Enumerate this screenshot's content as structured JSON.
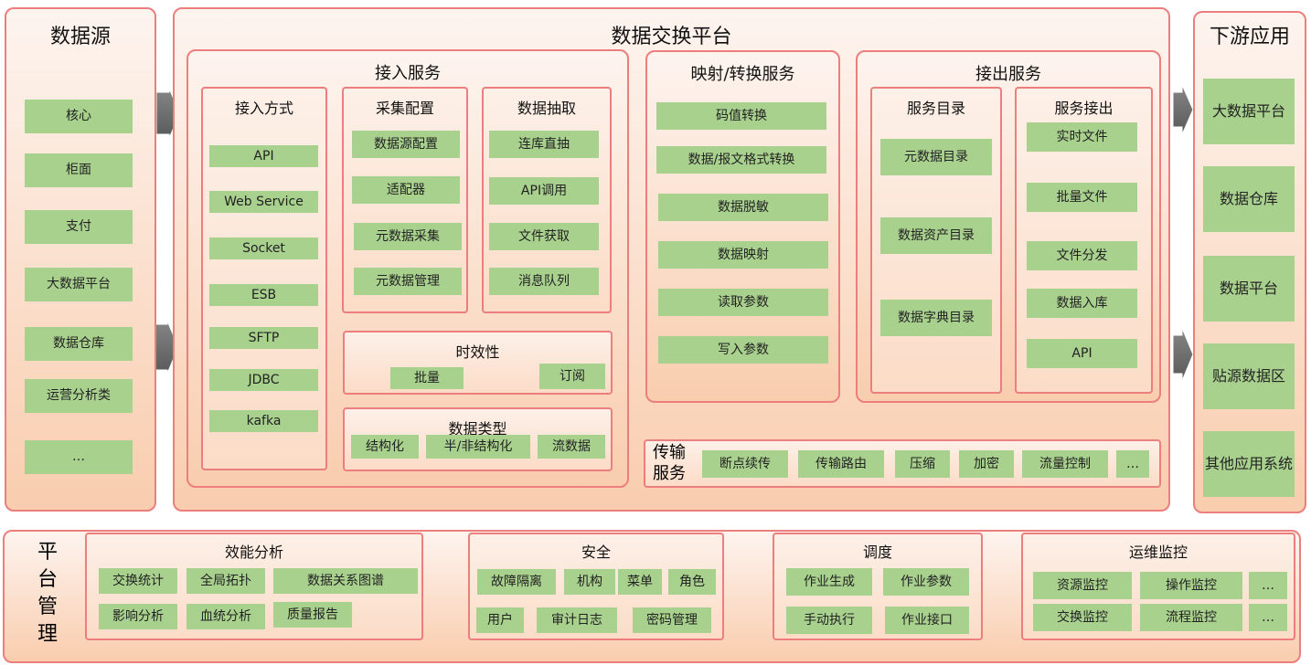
{
  "sources": {
    "title": "数据源",
    "items": [
      "核心",
      "柜面",
      "支付",
      "大数据平台",
      "数据仓库",
      "运营分析类",
      "…"
    ]
  },
  "platform": {
    "title": "数据交换平台",
    "ingest": {
      "title": "接入服务",
      "methods": {
        "title": "接入方式",
        "items": [
          "API",
          "Web Service",
          "Socket",
          "ESB",
          "SFTP",
          "JDBC",
          "kafka"
        ]
      },
      "collect": {
        "title": "采集配置",
        "items": [
          "数据源配置",
          "适配器",
          "元数据采集",
          "元数据管理"
        ]
      },
      "extract": {
        "title": "数据抽取",
        "items": [
          "连库直抽",
          "API调用",
          "文件获取",
          "消息队列"
        ]
      },
      "timeliness": {
        "title": "时效性",
        "items": [
          "批量",
          "订阅"
        ]
      },
      "datatype": {
        "title": "数据类型",
        "items": [
          "结构化",
          "半/非结构化",
          "流数据"
        ]
      }
    },
    "mapping": {
      "title": "映射/转换服务",
      "items": [
        "码值转换",
        "数据/报文格式转换",
        "数据脱敏",
        "数据映射",
        "读取参数",
        "写入参数"
      ]
    },
    "output": {
      "title": "接出服务",
      "catalog": {
        "title": "服务目录",
        "items": [
          "元数据目录",
          "数据资产目录",
          "数据字典目录"
        ]
      },
      "export": {
        "title": "服务接出",
        "items": [
          "实时文件",
          "批量文件",
          "文件分发",
          "数据入库",
          "API"
        ]
      }
    },
    "transport": {
      "title": "传输服务",
      "items": [
        "断点续传",
        "传输路由",
        "压缩",
        "加密",
        "流量控制",
        "…"
      ]
    }
  },
  "downstream": {
    "title": "下游应用",
    "items": [
      "大数据平台",
      "数据仓库",
      "数据平台",
      "贴源数据区",
      "其他应用系统"
    ]
  },
  "management": {
    "title": "平台管理",
    "performance": {
      "title": "效能分析",
      "items": [
        "交换统计",
        "全局拓扑",
        "数据关系图谱",
        "影响分析",
        "血统分析",
        "质量报告"
      ]
    },
    "security": {
      "title": "安全",
      "items": [
        "故障隔离",
        "机构",
        "菜单",
        "角色",
        "用户",
        "审计日志",
        "密码管理"
      ]
    },
    "scheduling": {
      "title": "调度",
      "items": [
        "作业生成",
        "作业参数",
        "手动执行",
        "作业接口"
      ]
    },
    "monitoring": {
      "title": "运维监控",
      "items": [
        "资源监控",
        "操作监控",
        "…",
        "交换监控",
        "流程监控",
        "…"
      ]
    }
  },
  "colors": {
    "border": "#ec7e7e",
    "box": "#a9d18e",
    "arrow": "#6b6b6b"
  }
}
